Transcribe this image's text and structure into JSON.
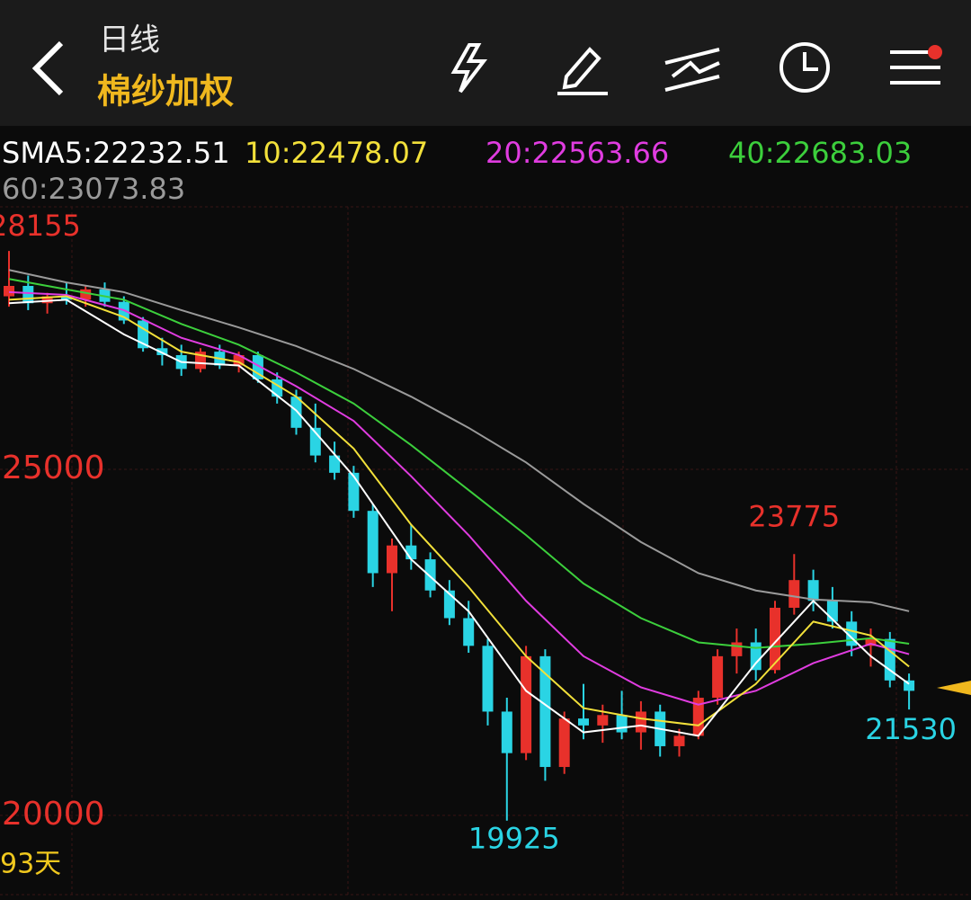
{
  "header": {
    "period": "日线",
    "symbol": "棉纱加权"
  },
  "chart_data": {
    "type": "candlestick",
    "legend": [
      {
        "label": "SMA5:22232.51",
        "color": "#ffffff"
      },
      {
        "label": "10:22478.07",
        "color": "#f2e03a"
      },
      {
        "label": "20:22563.66",
        "color": "#e03ce0"
      },
      {
        "label": "40:22683.03",
        "color": "#3ccf3c"
      },
      {
        "label": "60:23073.83",
        "color": "#9a9a9a"
      }
    ],
    "ylim": [
      18830,
      28793
    ],
    "yticks": [
      20000,
      25000
    ],
    "up_color": "#e8312b",
    "down_color": "#2ad4e4",
    "candles": [
      [
        27500,
        28155,
        27350,
        27650
      ],
      [
        27650,
        27800,
        27300,
        27400
      ],
      [
        27400,
        27550,
        27250,
        27500
      ],
      [
        27500,
        27700,
        27380,
        27450
      ],
      [
        27450,
        27650,
        27350,
        27600
      ],
      [
        27600,
        27700,
        27350,
        27420
      ],
      [
        27420,
        27500,
        27100,
        27150
      ],
      [
        27150,
        27200,
        26700,
        26750
      ],
      [
        26750,
        26900,
        26500,
        26650
      ],
      [
        26650,
        26800,
        26350,
        26450
      ],
      [
        26450,
        26750,
        26400,
        26700
      ],
      [
        26700,
        26800,
        26450,
        26500
      ],
      [
        26500,
        26700,
        26400,
        26650
      ],
      [
        26650,
        26700,
        26250,
        26300
      ],
      [
        26300,
        26400,
        25950,
        26050
      ],
      [
        26050,
        26150,
        25500,
        25600
      ],
      [
        25600,
        25950,
        25100,
        25200
      ],
      [
        25200,
        25400,
        24850,
        24950
      ],
      [
        24950,
        25050,
        24300,
        24400
      ],
      [
        24400,
        24500,
        23300,
        23500
      ],
      [
        23500,
        24000,
        22950,
        23900
      ],
      [
        23900,
        24200,
        23550,
        23700
      ],
      [
        23700,
        23800,
        23150,
        23250
      ],
      [
        23250,
        23400,
        22750,
        22850
      ],
      [
        22850,
        23100,
        22350,
        22450
      ],
      [
        22450,
        22550,
        21300,
        21500
      ],
      [
        21500,
        21700,
        19925,
        20900
      ],
      [
        20900,
        22450,
        20800,
        22300
      ],
      [
        22300,
        22400,
        20500,
        20700
      ],
      [
        20700,
        21500,
        20600,
        21400
      ],
      [
        21400,
        21900,
        21100,
        21300
      ],
      [
        21300,
        21600,
        21050,
        21450
      ],
      [
        21450,
        21800,
        21100,
        21200
      ],
      [
        21200,
        21650,
        20950,
        21500
      ],
      [
        21500,
        21600,
        20850,
        21000
      ],
      [
        21000,
        21250,
        20850,
        21150
      ],
      [
        21150,
        21800,
        21100,
        21700
      ],
      [
        21700,
        22400,
        21600,
        22300
      ],
      [
        22300,
        22700,
        22050,
        22500
      ],
      [
        22500,
        22700,
        21950,
        22100
      ],
      [
        22100,
        23100,
        22050,
        23000
      ],
      [
        23000,
        23775,
        22900,
        23400
      ],
      [
        23400,
        23550,
        22950,
        23100
      ],
      [
        23100,
        23300,
        22700,
        22800
      ],
      [
        22800,
        22950,
        22300,
        22450
      ],
      [
        22450,
        22700,
        22150,
        22550
      ],
      [
        22550,
        22650,
        21850,
        21950
      ],
      [
        21950,
        22050,
        21530,
        21800
      ]
    ],
    "ma_x": [
      0,
      3,
      6,
      9,
      12,
      15,
      18,
      21,
      24,
      27,
      30,
      33,
      36,
      39,
      42,
      45,
      47
    ],
    "series": [
      {
        "color": "#9a9a9a",
        "values": [
          27880,
          27700,
          27560,
          27300,
          27050,
          26780,
          26450,
          26050,
          25600,
          25100,
          24500,
          23950,
          23500,
          23250,
          23120,
          23080,
          22950
        ]
      },
      {
        "color": "#3ccf3c",
        "values": [
          27750,
          27600,
          27450,
          27100,
          26800,
          26400,
          25950,
          25350,
          24700,
          24050,
          23350,
          22850,
          22500,
          22420,
          22480,
          22560,
          22480
        ]
      },
      {
        "color": "#e03ce0",
        "values": [
          27560,
          27520,
          27300,
          26900,
          26650,
          26200,
          25700,
          24900,
          24050,
          23100,
          22300,
          21850,
          21600,
          21800,
          22200,
          22480,
          22330
        ]
      },
      {
        "color": "#f2e03a",
        "values": [
          27450,
          27500,
          27200,
          26700,
          26550,
          26050,
          25300,
          24200,
          23300,
          22300,
          21550,
          21400,
          21300,
          21900,
          22800,
          22600,
          22150
        ]
      },
      {
        "color": "#ffffff",
        "values": [
          27400,
          27450,
          26950,
          26550,
          26500,
          25850,
          24900,
          23700,
          22950,
          21800,
          21200,
          21300,
          21150,
          22200,
          23100,
          22300,
          21900
        ]
      }
    ],
    "period_label": "93天"
  }
}
